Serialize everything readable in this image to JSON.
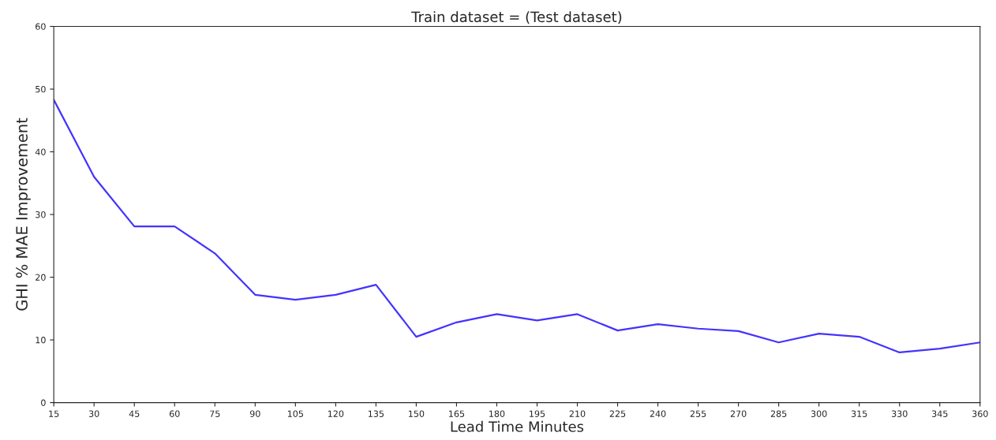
{
  "chart_data": {
    "type": "line",
    "title": "Train dataset = (Test dataset)",
    "xlabel": "Lead Time Minutes",
    "ylabel": "GHI % MAE Improvement",
    "x": [
      15,
      30,
      45,
      60,
      75,
      90,
      105,
      120,
      135,
      150,
      165,
      180,
      195,
      210,
      225,
      240,
      255,
      270,
      285,
      300,
      315,
      330,
      345,
      360
    ],
    "series": [
      {
        "color": "#4433ff",
        "values": [
          48.3,
          36.0,
          28.1,
          28.1,
          23.8,
          17.2,
          16.4,
          17.2,
          18.8,
          10.5,
          12.8,
          14.1,
          13.1,
          14.1,
          11.5,
          12.5,
          11.8,
          11.4,
          9.6,
          11.0,
          10.5,
          8.0,
          8.6,
          9.6
        ]
      }
    ],
    "xlim": [
      15,
      360
    ],
    "ylim": [
      0,
      60
    ],
    "xticks": [
      15,
      30,
      45,
      60,
      75,
      90,
      105,
      120,
      135,
      150,
      165,
      180,
      195,
      210,
      225,
      240,
      255,
      270,
      285,
      300,
      315,
      330,
      345,
      360
    ],
    "yticks": [
      0,
      10,
      20,
      30,
      40,
      50,
      60
    ],
    "grid": false,
    "legend": false
  }
}
